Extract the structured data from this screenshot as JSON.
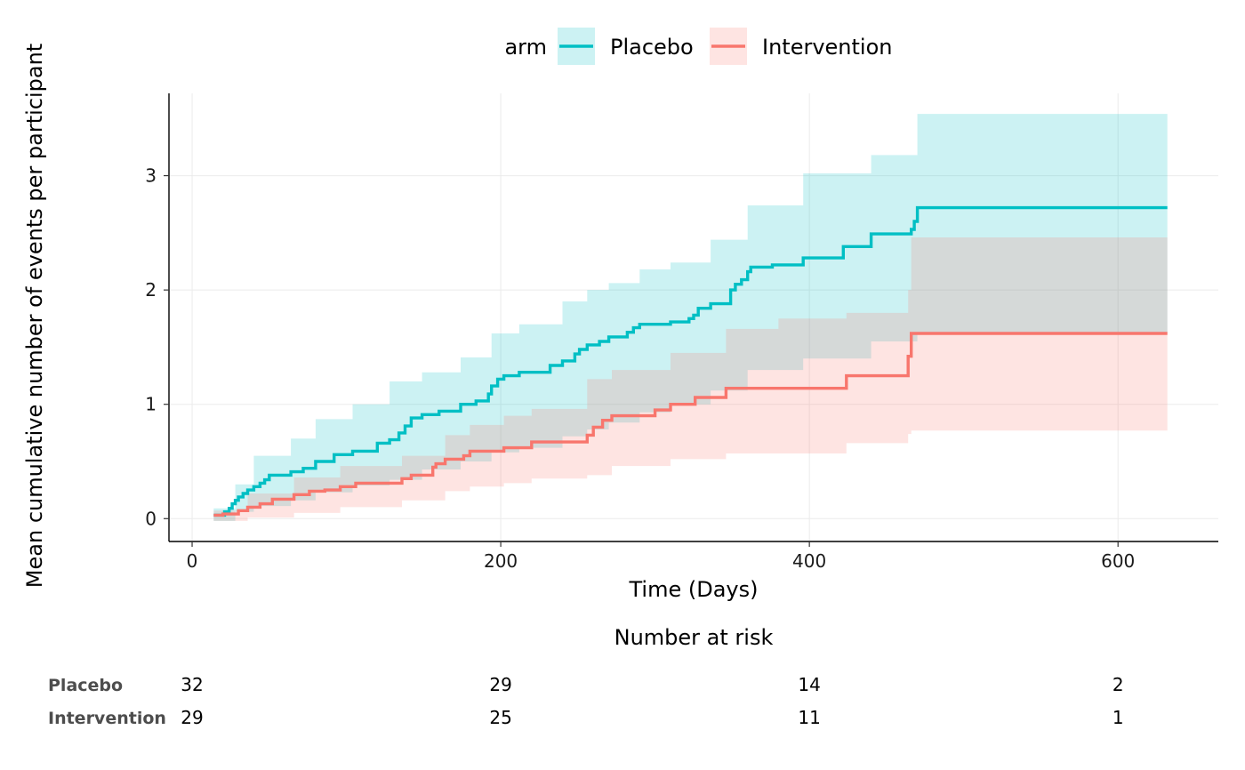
{
  "chart_data": [
    {
      "type": "line",
      "title": "",
      "xlabel": "Time (Days)",
      "ylabel": "Mean cumulative number of events per participant",
      "xlim": [
        -15,
        665
      ],
      "ylim": [
        -0.2,
        3.72
      ],
      "xticks": [
        0,
        200,
        400,
        600
      ],
      "yticks": [
        0,
        1,
        2,
        3
      ],
      "grid": true,
      "step": true,
      "legend": {
        "title": "arm",
        "position": "top"
      },
      "series": [
        {
          "name": "Placebo",
          "color": "#00BFC4",
          "fill": "#00BFC4",
          "points": [
            [
              14,
              0.03
            ],
            [
              21,
              0.06
            ],
            [
              24,
              0.09
            ],
            [
              26,
              0.13
            ],
            [
              28,
              0.16
            ],
            [
              30,
              0.19
            ],
            [
              33,
              0.22
            ],
            [
              36,
              0.25
            ],
            [
              40,
              0.28
            ],
            [
              44,
              0.31
            ],
            [
              47,
              0.34
            ],
            [
              50,
              0.38
            ],
            [
              64,
              0.41
            ],
            [
              72,
              0.44
            ],
            [
              80,
              0.5
            ],
            [
              92,
              0.56
            ],
            [
              104,
              0.59
            ],
            [
              120,
              0.66
            ],
            [
              128,
              0.69
            ],
            [
              134,
              0.75
            ],
            [
              138,
              0.81
            ],
            [
              142,
              0.88
            ],
            [
              149,
              0.91
            ],
            [
              160,
              0.94
            ],
            [
              174,
              1.0
            ],
            [
              184,
              1.03
            ],
            [
              192,
              1.09
            ],
            [
              194,
              1.16
            ],
            [
              198,
              1.22
            ],
            [
              202,
              1.25
            ],
            [
              212,
              1.28
            ],
            [
              232,
              1.34
            ],
            [
              240,
              1.38
            ],
            [
              248,
              1.44
            ],
            [
              251,
              1.48
            ],
            [
              256,
              1.52
            ],
            [
              264,
              1.55
            ],
            [
              270,
              1.59
            ],
            [
              282,
              1.63
            ],
            [
              286,
              1.67
            ],
            [
              290,
              1.7
            ],
            [
              310,
              1.72
            ],
            [
              322,
              1.75
            ],
            [
              325,
              1.78
            ],
            [
              328,
              1.84
            ],
            [
              336,
              1.88
            ],
            [
              349,
              2.0
            ],
            [
              352,
              2.05
            ],
            [
              356,
              2.09
            ],
            [
              360,
              2.16
            ],
            [
              362,
              2.2
            ],
            [
              376,
              2.22
            ],
            [
              396,
              2.28
            ],
            [
              422,
              2.38
            ],
            [
              440,
              2.49
            ],
            [
              466,
              2.53
            ],
            [
              468,
              2.6
            ],
            [
              470,
              2.72
            ],
            [
              632,
              2.72
            ]
          ],
          "ci_lower": [
            [
              14,
              -0.02
            ],
            [
              28,
              0.06
            ],
            [
              40,
              0.11
            ],
            [
              64,
              0.16
            ],
            [
              80,
              0.23
            ],
            [
              104,
              0.29
            ],
            [
              128,
              0.34
            ],
            [
              149,
              0.43
            ],
            [
              174,
              0.5
            ],
            [
              194,
              0.58
            ],
            [
              212,
              0.62
            ],
            [
              240,
              0.72
            ],
            [
              256,
              0.78
            ],
            [
              270,
              0.84
            ],
            [
              290,
              0.93
            ],
            [
              310,
              1.0
            ],
            [
              336,
              1.12
            ],
            [
              360,
              1.3
            ],
            [
              396,
              1.4
            ],
            [
              440,
              1.55
            ],
            [
              470,
              1.62
            ],
            [
              632,
              1.62
            ]
          ],
          "ci_upper": [
            [
              14,
              0.09
            ],
            [
              28,
              0.3
            ],
            [
              40,
              0.55
            ],
            [
              64,
              0.7
            ],
            [
              80,
              0.87
            ],
            [
              104,
              1.0
            ],
            [
              128,
              1.2
            ],
            [
              149,
              1.28
            ],
            [
              174,
              1.41
            ],
            [
              194,
              1.62
            ],
            [
              212,
              1.7
            ],
            [
              240,
              1.9
            ],
            [
              256,
              2.0
            ],
            [
              270,
              2.06
            ],
            [
              290,
              2.18
            ],
            [
              310,
              2.24
            ],
            [
              336,
              2.44
            ],
            [
              360,
              2.74
            ],
            [
              396,
              3.02
            ],
            [
              440,
              3.18
            ],
            [
              470,
              3.54
            ],
            [
              632,
              3.54
            ]
          ]
        },
        {
          "name": "Intervention",
          "color": "#F8766D",
          "fill": "#F8766D",
          "points": [
            [
              14,
              0.03
            ],
            [
              20,
              0.04
            ],
            [
              30,
              0.07
            ],
            [
              36,
              0.1
            ],
            [
              44,
              0.13
            ],
            [
              52,
              0.17
            ],
            [
              66,
              0.21
            ],
            [
              76,
              0.24
            ],
            [
              86,
              0.25
            ],
            [
              96,
              0.28
            ],
            [
              106,
              0.31
            ],
            [
              136,
              0.35
            ],
            [
              142,
              0.38
            ],
            [
              156,
              0.45
            ],
            [
              158,
              0.48
            ],
            [
              164,
              0.52
            ],
            [
              176,
              0.55
            ],
            [
              180,
              0.59
            ],
            [
              202,
              0.62
            ],
            [
              220,
              0.67
            ],
            [
              256,
              0.73
            ],
            [
              260,
              0.8
            ],
            [
              266,
              0.86
            ],
            [
              272,
              0.9
            ],
            [
              300,
              0.95
            ],
            [
              310,
              1.0
            ],
            [
              326,
              1.06
            ],
            [
              346,
              1.14
            ],
            [
              380,
              1.14
            ],
            [
              424,
              1.25
            ],
            [
              464,
              1.42
            ],
            [
              466,
              1.62
            ],
            [
              632,
              1.62
            ]
          ],
          "ci_lower": [
            [
              14,
              -0.02
            ],
            [
              36,
              0.01
            ],
            [
              66,
              0.05
            ],
            [
              96,
              0.1
            ],
            [
              136,
              0.16
            ],
            [
              164,
              0.24
            ],
            [
              180,
              0.28
            ],
            [
              202,
              0.31
            ],
            [
              220,
              0.35
            ],
            [
              256,
              0.38
            ],
            [
              272,
              0.46
            ],
            [
              310,
              0.52
            ],
            [
              346,
              0.57
            ],
            [
              424,
              0.66
            ],
            [
              464,
              0.74
            ],
            [
              466,
              0.77
            ],
            [
              632,
              0.77
            ]
          ],
          "ci_upper": [
            [
              14,
              0.07
            ],
            [
              36,
              0.22
            ],
            [
              66,
              0.36
            ],
            [
              96,
              0.46
            ],
            [
              136,
              0.55
            ],
            [
              164,
              0.73
            ],
            [
              180,
              0.82
            ],
            [
              202,
              0.9
            ],
            [
              220,
              0.96
            ],
            [
              256,
              1.22
            ],
            [
              272,
              1.3
            ],
            [
              310,
              1.45
            ],
            [
              346,
              1.66
            ],
            [
              380,
              1.75
            ],
            [
              424,
              1.8
            ],
            [
              464,
              2.0
            ],
            [
              466,
              2.46
            ],
            [
              632,
              2.46
            ]
          ]
        }
      ]
    },
    {
      "type": "table",
      "title": "Number at risk",
      "columns_x": [
        0,
        200,
        400,
        600
      ],
      "rows": [
        {
          "label": "Placebo",
          "values": [
            "32",
            "29",
            "14",
            "2"
          ]
        },
        {
          "label": "Intervention",
          "values": [
            "29",
            "25",
            "11",
            "1"
          ]
        }
      ]
    }
  ]
}
